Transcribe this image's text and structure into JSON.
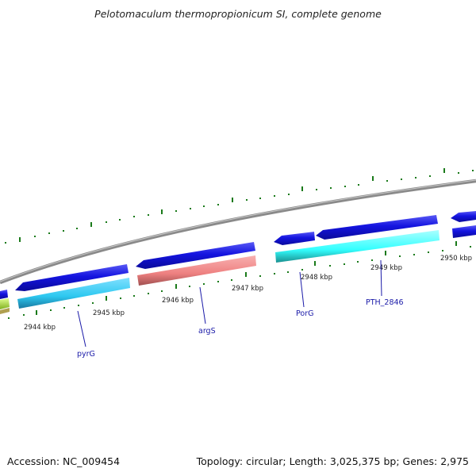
{
  "title": "Pelotomaculum thermopropionicum SI, complete genome",
  "footer": {
    "accession": "Accession: NC_009454",
    "topology": "Topology: circular; Length: 3,025,375 bp; Genes: 2,975"
  },
  "colors": {
    "backbone": "#8a8a8a",
    "forward_cds": "#1010d8",
    "gene_light_blue": "#2ec8f0",
    "gene_salmon": "#ee8080",
    "gene_cyan": "#33ffff",
    "gene_yellow_green": "#b8f040",
    "tick_mark": "#1a7a1a",
    "label_line": "#1a1aa8"
  },
  "tick_labels": [
    "2944 kbp",
    "2945 kbp",
    "2946 kbp",
    "2947 kbp",
    "2948 kbp",
    "2949 kbp",
    "2950 kbp"
  ],
  "gene_labels": [
    "pyrG",
    "argS",
    "PorG",
    "PTH_2846"
  ]
}
